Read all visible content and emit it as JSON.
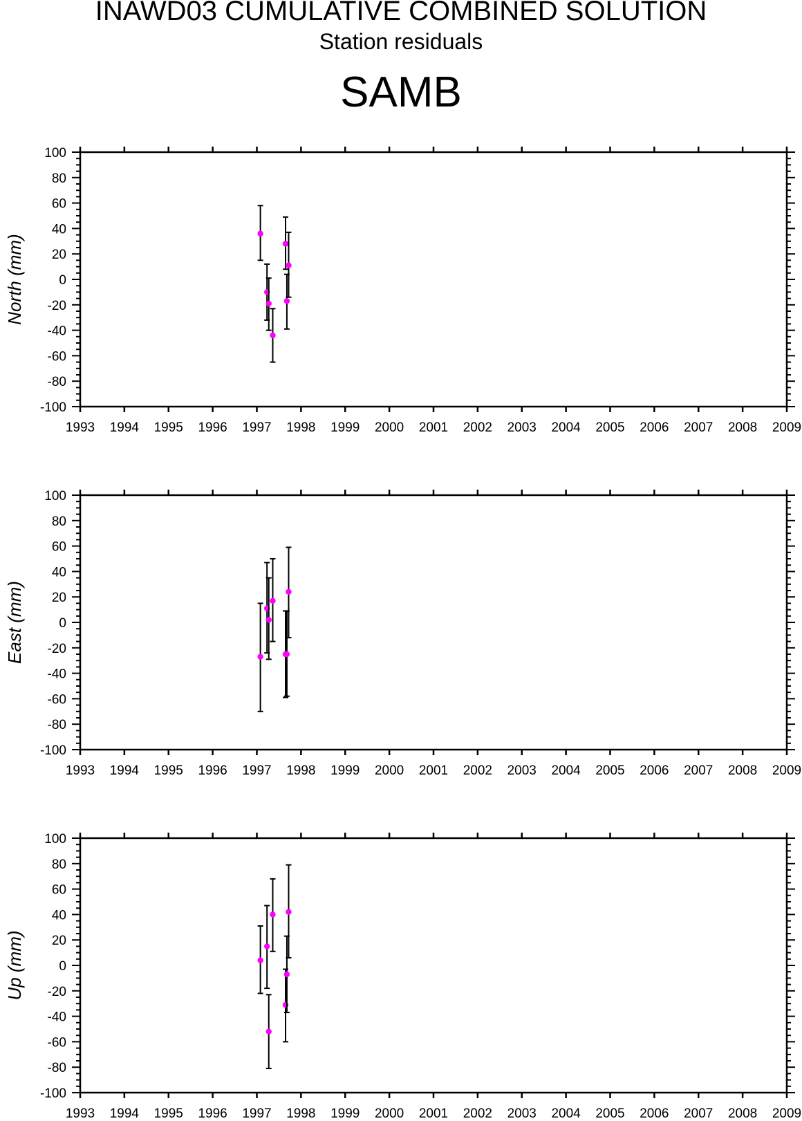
{
  "header": {
    "title": "INAWD03 CUMULATIVE COMBINED SOLUTION",
    "subtitle": "Station residuals",
    "station": "SAMB"
  },
  "colors": {
    "marker": "#ff00ff",
    "errorbar": "#000000",
    "axis": "#000000"
  },
  "chart_data": [
    {
      "type": "scatter",
      "ylabel": "North (mm)",
      "xlim": [
        1993,
        2009
      ],
      "ylim": [
        -100,
        100
      ],
      "xticks": [
        "1993",
        "1994",
        "1995",
        "1996",
        "1997",
        "1998",
        "1999",
        "2000",
        "2001",
        "2002",
        "2003",
        "2004",
        "2005",
        "2006",
        "2007",
        "2008",
        "2009"
      ],
      "yticks": [
        "-100",
        "-80",
        "-60",
        "-40",
        "-20",
        "0",
        "20",
        "40",
        "60",
        "80",
        "100"
      ],
      "error_bars": true,
      "points": [
        {
          "x": 1997.08,
          "y": 36,
          "lo": 15,
          "hi": 58
        },
        {
          "x": 1997.23,
          "y": -10,
          "lo": -32,
          "hi": 12
        },
        {
          "x": 1997.27,
          "y": -19,
          "lo": -40,
          "hi": 1
        },
        {
          "x": 1997.36,
          "y": -44,
          "lo": -65,
          "hi": -23
        },
        {
          "x": 1997.65,
          "y": 28,
          "lo": 8,
          "hi": 49
        },
        {
          "x": 1997.68,
          "y": -17,
          "lo": -39,
          "hi": 4
        },
        {
          "x": 1997.72,
          "y": 11,
          "lo": -14,
          "hi": 37
        }
      ]
    },
    {
      "type": "scatter",
      "ylabel": "East (mm)",
      "xlim": [
        1993,
        2009
      ],
      "ylim": [
        -100,
        100
      ],
      "xticks": [
        "1993",
        "1994",
        "1995",
        "1996",
        "1997",
        "1998",
        "1999",
        "2000",
        "2001",
        "2002",
        "2003",
        "2004",
        "2005",
        "2006",
        "2007",
        "2008",
        "2009"
      ],
      "yticks": [
        "-100",
        "-80",
        "-60",
        "-40",
        "-20",
        "0",
        "20",
        "40",
        "60",
        "80",
        "100"
      ],
      "error_bars": true,
      "points": [
        {
          "x": 1997.08,
          "y": -27,
          "lo": -70,
          "hi": 15
        },
        {
          "x": 1997.23,
          "y": 11,
          "lo": -24,
          "hi": 47
        },
        {
          "x": 1997.27,
          "y": 2,
          "lo": -29,
          "hi": 35
        },
        {
          "x": 1997.36,
          "y": 17,
          "lo": -15,
          "hi": 50
        },
        {
          "x": 1997.65,
          "y": -25,
          "lo": -59,
          "hi": 9
        },
        {
          "x": 1997.68,
          "y": -25,
          "lo": -58,
          "hi": 9
        },
        {
          "x": 1997.72,
          "y": 24,
          "lo": -12,
          "hi": 59
        }
      ]
    },
    {
      "type": "scatter",
      "ylabel": "Up (mm)",
      "xlim": [
        1993,
        2009
      ],
      "ylim": [
        -100,
        100
      ],
      "xticks": [
        "1993",
        "1994",
        "1995",
        "1996",
        "1997",
        "1998",
        "1999",
        "2000",
        "2001",
        "2002",
        "2003",
        "2004",
        "2005",
        "2006",
        "2007",
        "2008",
        "2009"
      ],
      "yticks": [
        "-100",
        "-80",
        "-60",
        "-40",
        "-20",
        "0",
        "20",
        "40",
        "60",
        "80",
        "100"
      ],
      "error_bars": true,
      "points": [
        {
          "x": 1997.08,
          "y": 4,
          "lo": -22,
          "hi": 31
        },
        {
          "x": 1997.23,
          "y": 15,
          "lo": -18,
          "hi": 47
        },
        {
          "x": 1997.27,
          "y": -52,
          "lo": -81,
          "hi": -23
        },
        {
          "x": 1997.36,
          "y": 40,
          "lo": 11,
          "hi": 68
        },
        {
          "x": 1997.65,
          "y": -31,
          "lo": -60,
          "hi": -3
        },
        {
          "x": 1997.68,
          "y": -7,
          "lo": -37,
          "hi": 23
        },
        {
          "x": 1997.72,
          "y": 42,
          "lo": 6,
          "hi": 79
        }
      ]
    }
  ]
}
